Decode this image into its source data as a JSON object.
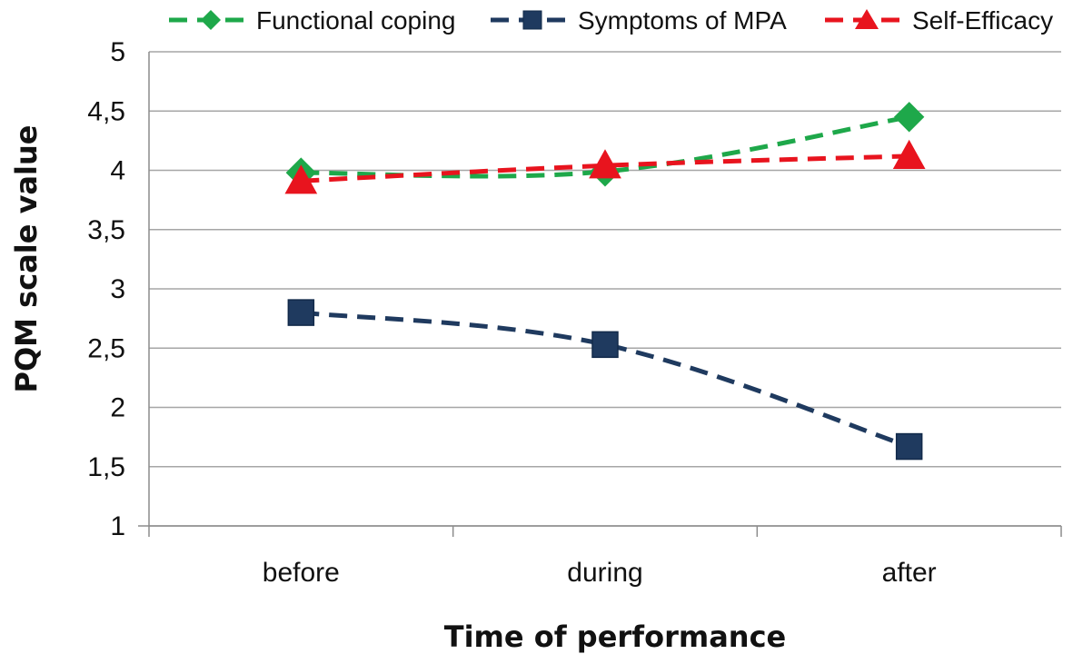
{
  "chart_data": {
    "type": "line",
    "title": "",
    "xlabel": "Time of performance",
    "ylabel": "PQM scale value",
    "categories": [
      "before",
      "during",
      "after"
    ],
    "ylim": [
      1,
      5
    ],
    "yticks": [
      "1",
      "1,5",
      "2",
      "2,5",
      "3",
      "3,5",
      "4",
      "4,5",
      "5"
    ],
    "ytick_values": [
      1,
      1.5,
      2,
      2.5,
      3,
      3.5,
      4,
      4.5,
      5
    ],
    "grid": true,
    "legend_position": "top",
    "series": [
      {
        "name": "Functional coping",
        "values": [
          3.98,
          3.99,
          4.45
        ],
        "color": "#1ea84a",
        "marker": "diamond"
      },
      {
        "name": "Symptoms of MPA",
        "values": [
          2.8,
          2.53,
          1.67
        ],
        "color": "#1f3a5f",
        "marker": "square"
      },
      {
        "name": "Self-Efficacy",
        "values": [
          3.91,
          4.04,
          4.12
        ],
        "color": "#e8141e",
        "marker": "triangle"
      }
    ]
  }
}
